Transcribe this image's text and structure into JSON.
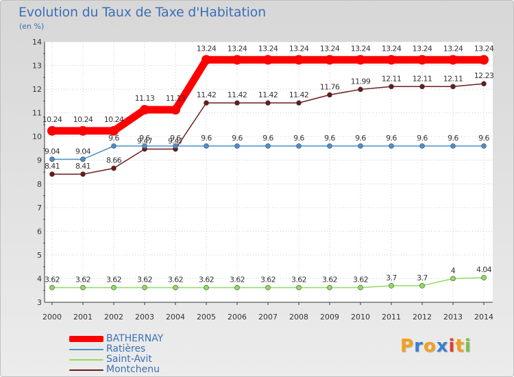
{
  "chart_data": {
    "type": "line",
    "title": "Evolution du Taux de Taxe d'Habitation",
    "subtitle": "(en %)",
    "xlabel": "",
    "ylabel": "",
    "ylim": [
      3,
      14
    ],
    "yticks": [
      "3",
      "4",
      "5",
      "6",
      "7",
      "8",
      "9",
      "10",
      "11",
      "12",
      "13",
      "14"
    ],
    "categories": [
      "2000",
      "2001",
      "2002",
      "2003",
      "2004",
      "2005",
      "2006",
      "2007",
      "2008",
      "2009",
      "2010",
      "2011",
      "2012",
      "2013",
      "2014"
    ],
    "series": [
      {
        "name": "BATHERNAY",
        "color": "#ff0000",
        "values": [
          10.24,
          10.24,
          10.24,
          11.13,
          11.13,
          13.24,
          13.24,
          13.24,
          13.24,
          13.24,
          13.24,
          13.24,
          13.24,
          13.24,
          13.24
        ],
        "labels": [
          "10.24",
          "10.24",
          "10.24",
          "11.13",
          "11.13",
          "13.24",
          "13.24",
          "13.24",
          "13.24",
          "13.24",
          "13.24",
          "13.24",
          "13.24",
          "13.24",
          "13.24"
        ]
      },
      {
        "name": "Ratières",
        "color": "#4a8fcc",
        "values": [
          9.04,
          9.04,
          9.6,
          9.6,
          9.6,
          9.6,
          9.6,
          9.6,
          9.6,
          9.6,
          9.6,
          9.6,
          9.6,
          9.6,
          9.6
        ],
        "labels": [
          "9.04",
          "9.04",
          "9.6",
          "9.6",
          "9.6",
          "9.6",
          "9.6",
          "9.6",
          "9.6",
          "9.6",
          "9.6",
          "9.6",
          "9.6",
          "9.6",
          "9.6"
        ]
      },
      {
        "name": "Saint-Avit",
        "color": "#8fdc5c",
        "values": [
          3.62,
          3.62,
          3.62,
          3.62,
          3.62,
          3.62,
          3.62,
          3.62,
          3.62,
          3.62,
          3.62,
          3.7,
          3.7,
          4,
          4.04
        ],
        "labels": [
          "3.62",
          "3.62",
          "3.62",
          "3.62",
          "3.62",
          "3.62",
          "3.62",
          "3.62",
          "3.62",
          "3.62",
          "3.62",
          "3.7",
          "3.7",
          "4",
          "4.04"
        ]
      },
      {
        "name": "Montchenu",
        "color": "#6b1a1a",
        "values": [
          8.41,
          8.41,
          8.66,
          9.47,
          9.47,
          11.42,
          11.42,
          11.42,
          11.42,
          11.76,
          11.99,
          12.11,
          12.11,
          12.11,
          12.23
        ],
        "labels": [
          "8.41",
          "8.41",
          "8.66",
          "9.47",
          "9.47",
          "11.42",
          "11.42",
          "11.42",
          "11.42",
          "11.76",
          "11.99",
          "12.11",
          "12.11",
          "12.11",
          "12.23"
        ]
      }
    ],
    "legend_position": "bottom-left",
    "grid": true
  },
  "branding": {
    "logo_letters": [
      "P",
      "r",
      "o",
      "x",
      "i",
      "t",
      "i"
    ],
    "logo_colors": [
      "#f3a01c",
      "#3a7fd0",
      "#f3a01c",
      "#3a7fd0",
      "#e23b2e",
      "#f3a01c",
      "#7bc143"
    ]
  }
}
